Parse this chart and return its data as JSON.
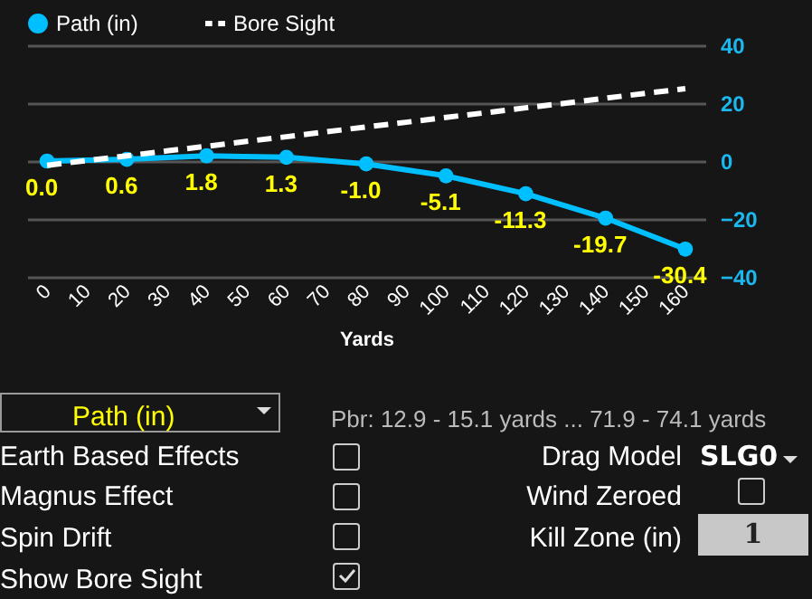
{
  "chart_data": [
    {
      "type": "line",
      "xlabel": "Yards",
      "legend": "top",
      "categories": [
        "0",
        "10",
        "20",
        "30",
        "40",
        "50",
        "60",
        "70",
        "80",
        "90",
        "100",
        "110",
        "120",
        "130",
        "140",
        "150",
        "160"
      ],
      "ylim": [
        -40,
        40
      ],
      "yticks": [
        -40,
        -20,
        0,
        20,
        40
      ],
      "grid": "y",
      "series": [
        {
          "name": "Path (in)",
          "color": "#00bfff",
          "marker": "circle",
          "x": [
            "0",
            "20",
            "40",
            "60",
            "80",
            "100",
            "120",
            "140",
            "160"
          ],
          "values": [
            0.0,
            0.6,
            1.8,
            1.3,
            -1.0,
            -5.1,
            -11.3,
            -19.7,
            -30.4
          ],
          "value_labels": [
            "0.0",
            "0.6",
            "1.8",
            "1.3",
            "-1.0",
            "-5.1",
            "-11.3",
            "-19.7",
            "-30.4"
          ]
        },
        {
          "name": "Bore Sight",
          "color": "#ffffff",
          "line_style": "dashed",
          "values": [
            -1.5,
            0.2,
            1.8,
            3.5,
            5.1,
            6.8,
            8.4,
            10.1,
            11.8,
            13.4,
            15.1,
            16.7,
            18.4,
            20.0,
            21.7,
            23.4,
            25.0
          ]
        }
      ]
    },
    {
      "type": "other",
      "annotations": [
        "Path (in)",
        "Pbr: 12.9 - 15.1 yards ... 71.9 - 74.1 yards",
        "Earth Based Effects",
        "Magnus Effect",
        "Spin Drift",
        "Show Bore Sight",
        "Drag Model",
        "SLG0",
        "Wind Zeroed",
        "Kill Zone (in)",
        "1"
      ]
    }
  ]
}
